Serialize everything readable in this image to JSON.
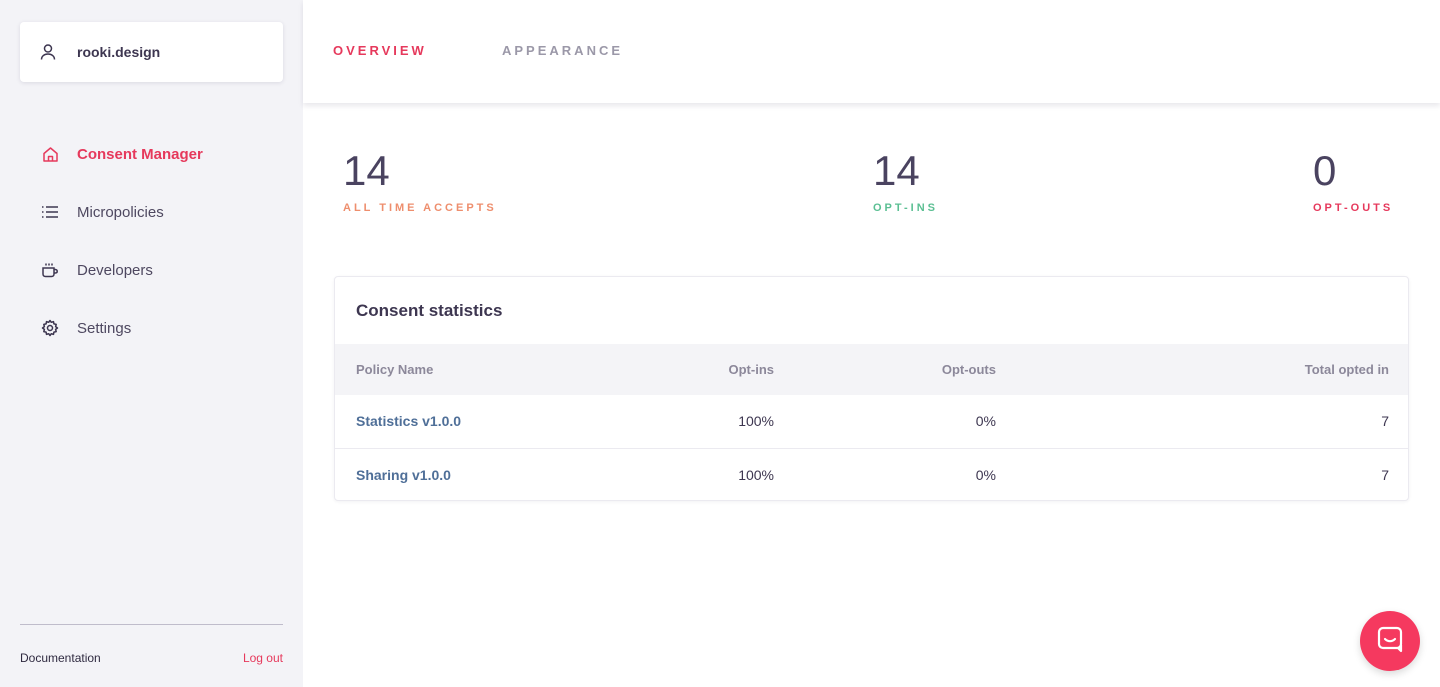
{
  "account": {
    "name": "rooki.design",
    "icon": "user-icon"
  },
  "sidebar": {
    "items": [
      {
        "label": "Consent Manager",
        "icon": "home-icon",
        "active": true
      },
      {
        "label": "Micropolicies",
        "icon": "list-icon",
        "active": false
      },
      {
        "label": "Developers",
        "icon": "coffee-cup-icon",
        "active": false
      },
      {
        "label": "Settings",
        "icon": "gear-icon",
        "active": false
      }
    ],
    "documentation": "Documentation",
    "logout": "Log out"
  },
  "tabs": [
    {
      "label": "OVERVIEW",
      "active": true
    },
    {
      "label": "APPEARANCE",
      "active": false
    }
  ],
  "stats": [
    {
      "value": "14",
      "label": "ALL TIME ACCEPTS",
      "color": "#ee8e6d"
    },
    {
      "value": "14",
      "label": "OPT-INS",
      "color": "#5bbf93"
    },
    {
      "value": "0",
      "label": "OPT-OUTS",
      "color": "#e6395c"
    }
  ],
  "consent_table": {
    "title": "Consent statistics",
    "columns": [
      "Policy Name",
      "Opt-ins",
      "Opt-outs",
      "Total opted in"
    ],
    "rows": [
      [
        "Statistics v1.0.0",
        "100%",
        "0%",
        "7"
      ],
      [
        "Sharing v1.0.0",
        "100%",
        "0%",
        "7"
      ]
    ]
  },
  "colors": {
    "accent": "#e6395c",
    "link": "#4f6f98",
    "chat_button": "#f5395f"
  },
  "chat": {
    "icon": "chat-icon"
  }
}
